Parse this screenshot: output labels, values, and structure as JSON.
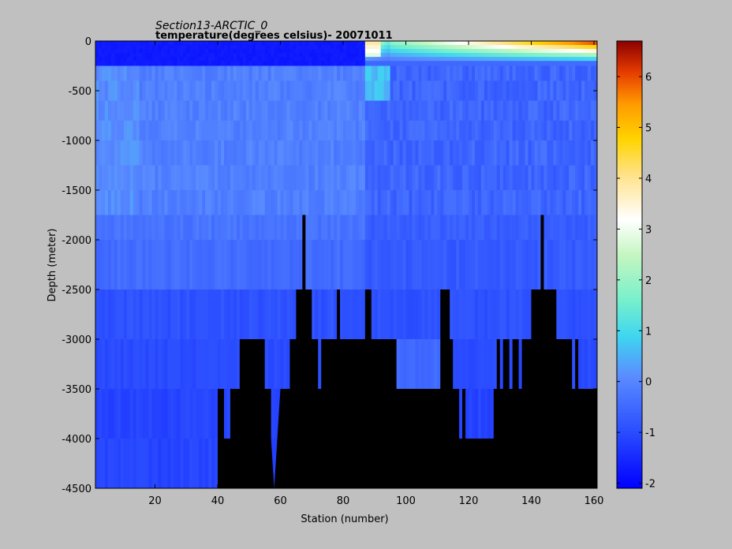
{
  "chart_data": {
    "type": "heatmap",
    "title": "Section13-ARCTIC_0",
    "subtitle": "temperature(degrees  celsius)- 20071011",
    "xlabel": "Station (number)",
    "ylabel": "Depth (meter)",
    "xlim": [
      1,
      161
    ],
    "ylim": [
      -4500,
      0
    ],
    "xticks": [
      20,
      40,
      60,
      80,
      100,
      120,
      140,
      160
    ],
    "yticks": [
      0,
      -500,
      -1000,
      -1500,
      -2000,
      -2500,
      -3000,
      -3500,
      -4000,
      -4500
    ],
    "colorbar": {
      "range": [
        -2.1,
        6.7
      ],
      "ticks": [
        -2,
        -1,
        0,
        1,
        2,
        3,
        4,
        5,
        6
      ],
      "colormap": "jet"
    },
    "bathymetry_profile": {
      "note_units": "station, seafloor depth in meters",
      "points": [
        [
          1,
          -4500
        ],
        [
          40,
          -4500
        ],
        [
          40,
          -3500
        ],
        [
          42,
          -3500
        ],
        [
          42,
          -4000
        ],
        [
          44,
          -4000
        ],
        [
          44,
          -3500
        ],
        [
          47,
          -3500
        ],
        [
          47,
          -3000
        ],
        [
          55,
          -3000
        ],
        [
          55,
          -3500
        ],
        [
          57,
          -3500
        ],
        [
          57,
          -4000
        ],
        [
          58,
          -4500
        ],
        [
          59,
          -4000
        ],
        [
          60,
          -3500
        ],
        [
          61,
          -3500
        ],
        [
          61,
          -3500
        ],
        [
          63,
          -3500
        ],
        [
          63,
          -3000
        ],
        [
          65,
          -3000
        ],
        [
          65,
          -2500
        ],
        [
          67,
          -2500
        ],
        [
          67,
          -1750
        ],
        [
          68,
          -1750
        ],
        [
          68,
          -2500
        ],
        [
          70,
          -2500
        ],
        [
          70,
          -3000
        ],
        [
          72,
          -3000
        ],
        [
          72,
          -3500
        ],
        [
          73,
          -3500
        ],
        [
          73,
          -3000
        ],
        [
          78,
          -3000
        ],
        [
          78,
          -2500
        ],
        [
          79,
          -2500
        ],
        [
          79,
          -3000
        ],
        [
          87,
          -3000
        ],
        [
          87,
          -2500
        ],
        [
          89,
          -2500
        ],
        [
          89,
          -3000
        ],
        [
          97,
          -3000
        ],
        [
          97,
          -3500
        ],
        [
          111,
          -3500
        ],
        [
          111,
          -2500
        ],
        [
          114,
          -2500
        ],
        [
          114,
          -3000
        ],
        [
          115,
          -3000
        ],
        [
          115,
          -3500
        ],
        [
          117,
          -3500
        ],
        [
          117,
          -4000
        ],
        [
          118,
          -4000
        ],
        [
          118,
          -3500
        ],
        [
          119,
          -3500
        ],
        [
          119,
          -4000
        ],
        [
          128,
          -4000
        ],
        [
          128,
          -3500
        ],
        [
          129,
          -3500
        ],
        [
          129,
          -3000
        ],
        [
          130,
          -3000
        ],
        [
          130,
          -3500
        ],
        [
          131,
          -3500
        ],
        [
          131,
          -3000
        ],
        [
          133,
          -3000
        ],
        [
          133,
          -3500
        ],
        [
          134,
          -3500
        ],
        [
          134,
          -3000
        ],
        [
          136,
          -3000
        ],
        [
          136,
          -3500
        ],
        [
          137,
          -3500
        ],
        [
          137,
          -3000
        ],
        [
          140,
          -3000
        ],
        [
          140,
          -2500
        ],
        [
          143,
          -2500
        ],
        [
          143,
          -1750
        ],
        [
          144,
          -1750
        ],
        [
          144,
          -2500
        ],
        [
          148,
          -2500
        ],
        [
          148,
          -3000
        ],
        [
          153,
          -3000
        ],
        [
          153,
          -3500
        ],
        [
          154,
          -3500
        ],
        [
          154,
          -3000
        ],
        [
          155,
          -3000
        ],
        [
          155,
          -3500
        ],
        [
          161,
          -3500
        ],
        [
          161,
          -4500
        ]
      ]
    },
    "temperature_field": {
      "surface_layer_0_to_250m": "about -1.8 (cold, dark blue) for stations 1-87",
      "atlantic_inflow": "warm core 2 to 4 near surface at stations 87-92, rising to 6.5 at stations 150-161",
      "intermediate_250_to_1750m": "about -0.2 to 0.3 for stations 1-87, -0.5 to 0.5 for stations 88-161",
      "deep_below_2500m": "about -0.9 to -1.1"
    },
    "colors": {
      "background": "#c0c0c0",
      "land_mask": "#000000"
    }
  }
}
